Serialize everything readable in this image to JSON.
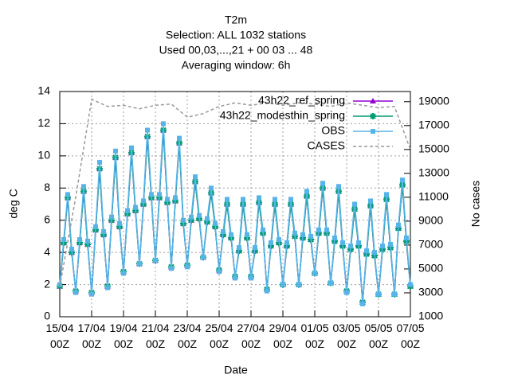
{
  "chart_data": {
    "type": "line",
    "title": [
      "T2m",
      "Selection: ALL   1032 stations",
      "Used  00,03,...,21  + 00 03 ... 48",
      "Averaging window:  6h"
    ],
    "xlabel": "Date",
    "ylabel": "deg C",
    "y2label": "No cases",
    "grid": true,
    "legend": "upper right",
    "x": [
      0,
      0.25,
      0.5,
      0.75,
      1,
      1.25,
      1.5,
      1.75,
      2,
      2.25,
      2.5,
      2.75,
      3,
      3.25,
      3.5,
      3.75,
      4,
      4.25,
      4.5,
      4.75,
      5,
      5.25,
      5.5,
      5.75,
      6,
      6.25,
      6.5,
      6.75,
      7,
      7.25,
      7.5,
      7.75,
      8,
      8.25,
      8.5,
      8.75,
      9,
      9.25,
      9.5,
      9.75,
      10,
      10.25,
      10.5,
      10.75,
      11,
      11.25,
      11.5,
      11.75,
      12,
      12.25,
      12.5,
      12.75,
      13,
      13.25,
      13.5,
      13.75,
      14,
      14.25,
      14.5,
      14.75,
      15,
      15.25,
      15.5,
      15.75,
      16,
      16.25,
      16.5,
      16.75,
      17,
      17.25,
      17.5,
      17.75,
      18,
      18.25,
      18.5,
      18.75,
      19,
      19.25,
      19.5,
      19.75,
      20,
      20.25,
      20.5,
      20.75,
      21,
      21.25,
      21.5,
      21.75,
      22
    ],
    "xlim": [
      0,
      22
    ],
    "xticks": [
      {
        "value": 0,
        "label": "15/04\n00Z"
      },
      {
        "value": 2,
        "label": "17/04\n00Z"
      },
      {
        "value": 4,
        "label": "19/04\n00Z"
      },
      {
        "value": 6,
        "label": "21/04\n00Z"
      },
      {
        "value": 8,
        "label": "23/04\n00Z"
      },
      {
        "value": 10,
        "label": "25/04\n00Z"
      },
      {
        "value": 12,
        "label": "27/04\n00Z"
      },
      {
        "value": 14,
        "label": "29/04\n00Z"
      },
      {
        "value": 16,
        "label": "01/05\n00Z"
      },
      {
        "value": 18,
        "label": "03/05\n00Z"
      },
      {
        "value": 20,
        "label": "05/05\n00Z"
      },
      {
        "value": 22,
        "label": "07/05\n00Z"
      }
    ],
    "ylim": [
      0,
      14
    ],
    "yticks": [
      0,
      2,
      4,
      6,
      8,
      10,
      12,
      14
    ],
    "y2lim": [
      1000,
      19850
    ],
    "y2ticks": [
      1000,
      3000,
      5000,
      7000,
      9000,
      11000,
      13000,
      15000,
      17000,
      19000
    ],
    "series": [
      {
        "name": "43h22_ref_spring",
        "color": "#9400d3",
        "marker": "triangle",
        "values": [
          1.9,
          4.6,
          7.4,
          4.0,
          1.6,
          4.6,
          7.8,
          4.5,
          1.5,
          5.4,
          9.2,
          5.1,
          1.9,
          6.0,
          9.9,
          5.6,
          2.8,
          6.4,
          10.2,
          6.6,
          3.3,
          7.0,
          11.2,
          7.4,
          3.5,
          7.4,
          11.6,
          7.1,
          3.1,
          7.2,
          10.8,
          5.8,
          3.2,
          6.0,
          8.4,
          6.1,
          3.7,
          5.9,
          7.7,
          5.6,
          2.9,
          5.1,
          7.0,
          4.9,
          2.5,
          4.1,
          7.0,
          4.9,
          2.5,
          4.1,
          7.1,
          5.2,
          1.7,
          4.4,
          7.0,
          4.6,
          2.0,
          4.4,
          7.0,
          5.0,
          2.0,
          4.9,
          7.5,
          4.8,
          2.7,
          5.2,
          8.0,
          5.2,
          2.1,
          4.7,
          7.8,
          4.4,
          1.6,
          4.2,
          6.7,
          4.4,
          0.9,
          3.9,
          6.9,
          3.8,
          1.4,
          4.2,
          7.3,
          4.3,
          1.4,
          5.5,
          8.2,
          4.7,
          1.9
        ]
      },
      {
        "name": "43h22_modesthin_spring",
        "color": "#009e73",
        "marker": "star",
        "values": [
          1.9,
          4.6,
          7.4,
          4.0,
          1.6,
          4.6,
          7.8,
          4.5,
          1.5,
          5.4,
          9.2,
          5.1,
          1.9,
          6.0,
          9.9,
          5.6,
          2.8,
          6.4,
          10.2,
          6.6,
          3.3,
          7.0,
          11.2,
          7.4,
          3.5,
          7.4,
          11.6,
          7.1,
          3.1,
          7.2,
          10.8,
          5.8,
          3.2,
          6.0,
          8.4,
          6.1,
          3.7,
          5.9,
          7.7,
          5.6,
          2.9,
          5.1,
          7.0,
          4.9,
          2.5,
          4.1,
          7.0,
          4.9,
          2.5,
          4.1,
          7.1,
          5.2,
          1.7,
          4.4,
          7.0,
          4.6,
          2.0,
          4.4,
          7.0,
          5.0,
          2.0,
          4.9,
          7.5,
          4.8,
          2.7,
          5.2,
          8.0,
          5.2,
          2.1,
          4.7,
          7.8,
          4.4,
          1.6,
          4.2,
          6.7,
          4.4,
          0.9,
          3.9,
          6.9,
          3.8,
          1.4,
          4.2,
          7.3,
          4.3,
          1.4,
          5.5,
          8.2,
          4.7,
          1.9
        ]
      },
      {
        "name": "OBS",
        "color": "#56b4e9",
        "marker": "square",
        "values": [
          2.0,
          4.8,
          7.6,
          4.2,
          1.5,
          4.8,
          8.1,
          4.7,
          1.4,
          5.6,
          9.6,
          5.3,
          1.8,
          6.2,
          10.3,
          5.8,
          2.7,
          6.6,
          10.5,
          6.8,
          3.3,
          7.2,
          11.6,
          7.6,
          3.5,
          7.6,
          12.0,
          7.3,
          3.0,
          7.4,
          11.1,
          6.0,
          3.1,
          6.2,
          8.7,
          6.3,
          3.7,
          6.1,
          8.0,
          5.8,
          2.8,
          5.3,
          7.3,
          5.1,
          2.4,
          4.3,
          7.3,
          5.1,
          2.4,
          4.3,
          7.4,
          5.4,
          1.6,
          4.6,
          7.3,
          4.8,
          2.0,
          4.6,
          7.3,
          5.2,
          2.0,
          5.1,
          7.8,
          5.0,
          2.7,
          5.4,
          8.3,
          5.4,
          2.1,
          4.9,
          8.1,
          4.6,
          1.5,
          4.4,
          7.0,
          4.6,
          0.8,
          4.1,
          7.2,
          4.0,
          1.4,
          4.4,
          7.6,
          4.5,
          1.4,
          5.7,
          8.5,
          4.9,
          2.0
        ]
      },
      {
        "name": "CASES",
        "color": "#999999",
        "dashed": true,
        "axis": "y2",
        "x": [
          0,
          1,
          2,
          3,
          4,
          5,
          6,
          7,
          8,
          9,
          10,
          11,
          12,
          13,
          14,
          15,
          16,
          17,
          18,
          19,
          20,
          21,
          22
        ],
        "values": [
          3500,
          11000,
          19200,
          18600,
          18700,
          18400,
          18700,
          18800,
          17700,
          18000,
          18600,
          18900,
          18700,
          18900,
          18700,
          18900,
          18800,
          18600,
          18900,
          18700,
          18500,
          18600,
          15000
        ]
      }
    ]
  }
}
